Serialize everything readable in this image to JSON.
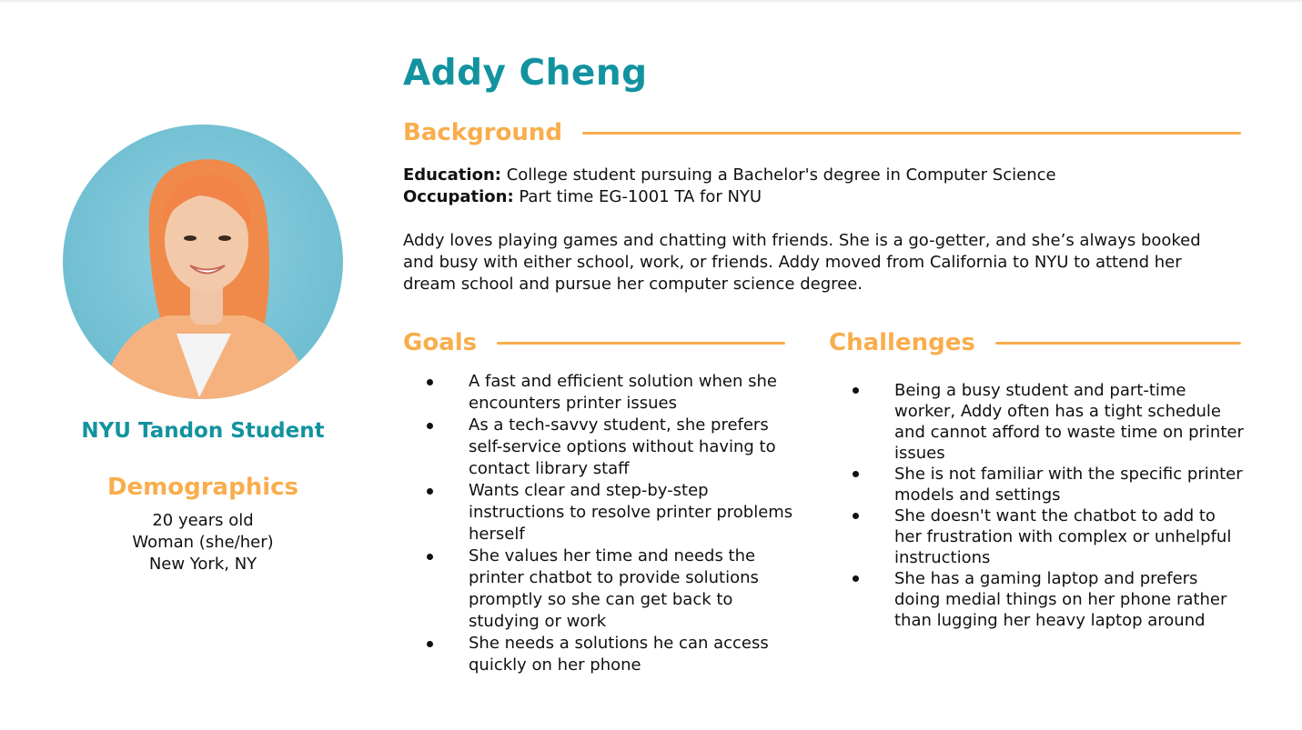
{
  "persona": {
    "name": "Addy Cheng",
    "role": "NYU Tandon Student"
  },
  "colors": {
    "teal": "#12939f",
    "orange": "#f9ad4c",
    "photo_background": "#74c1d4"
  },
  "photo": {
    "icon": "portrait-photo"
  },
  "demographics": {
    "heading": "Demographics",
    "items": [
      "20 years old",
      "Woman (she/her)",
      "New York, NY"
    ]
  },
  "background": {
    "heading": "Background",
    "education_label": "Education:",
    "education_value": "College student pursuing a Bachelor's degree in Computer Science",
    "occupation_label": "Occupation:",
    "occupation_value": "Part time EG-1001 TA for NYU",
    "bio": "Addy loves playing games and chatting with friends. She is a go-getter, and she’s always booked and busy with either school, work, or friends. Addy moved from California to NYU to attend her dream school and pursue her computer science degree."
  },
  "goals": {
    "heading": "Goals",
    "items": [
      "A fast and efficient solution when she encounters printer issues",
      "As a tech-savvy student, she prefers self-service options without having to contact library staff",
      "Wants clear and step-by-step instructions to resolve printer problems herself",
      "She values her time and needs the printer chatbot to provide solutions promptly so she can get back to studying or work",
      "She needs a solutions he can access quickly on her phone"
    ]
  },
  "challenges": {
    "heading": "Challenges",
    "items": [
      "Being a busy student and part-time worker, Addy often has a tight schedule and cannot afford to waste time on printer issues",
      "She is not familiar with the specific printer models and settings",
      "She doesn't want the chatbot to add to her frustration with complex or unhelpful instructions",
      "She has a gaming laptop and prefers doing medial things on her phone rather than lugging her heavy laptop around"
    ]
  }
}
